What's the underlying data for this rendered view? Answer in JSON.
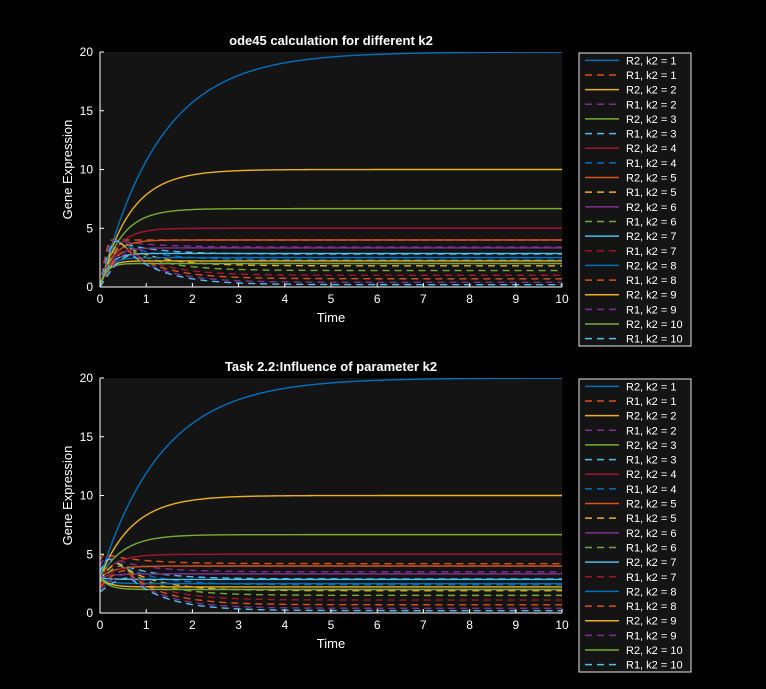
{
  "chart_data": [
    {
      "type": "line",
      "title": "ode45 calculation for different k2",
      "xlabel": "Time",
      "ylabel": "Gene Expression",
      "xlim": [
        0,
        10
      ],
      "ylim": [
        0,
        20
      ],
      "xticks": [
        0,
        1,
        2,
        3,
        4,
        5,
        6,
        7,
        8,
        9,
        10
      ],
      "yticks": [
        0,
        5,
        10,
        15,
        20
      ],
      "grid": false,
      "legend_position": "outside-right",
      "r1_curves": [
        {
          "start": 0,
          "peak_t": 0.25,
          "peak": 4.0,
          "tau": 0.8,
          "final": 4.0
        },
        {
          "start": 0,
          "peak_t": 0.3,
          "peak": 4.0,
          "tau": 0.8,
          "final": 3.4
        },
        {
          "start": 0,
          "peak_t": 0.35,
          "peak": 3.9,
          "tau": 0.8,
          "final": 2.8
        },
        {
          "start": 0,
          "peak_t": 0.4,
          "peak": 3.8,
          "tau": 0.8,
          "final": 2.3
        },
        {
          "start": 0,
          "peak_t": 0.45,
          "peak": 3.7,
          "tau": 0.8,
          "final": 1.8
        },
        {
          "start": 0,
          "peak_t": 0.5,
          "peak": 3.5,
          "tau": 0.8,
          "final": 1.4
        },
        {
          "start": 0,
          "peak_t": 0.55,
          "peak": 3.3,
          "tau": 0.8,
          "final": 1.0
        },
        {
          "start": 0,
          "peak_t": 0.6,
          "peak": 3.1,
          "tau": 0.8,
          "final": 0.7
        },
        {
          "start": 0,
          "peak_t": 0.65,
          "peak": 2.9,
          "tau": 0.8,
          "final": 0.4
        },
        {
          "start": 0,
          "peak_t": 0.7,
          "peak": 2.7,
          "tau": 0.8,
          "final": 0.2
        }
      ],
      "series": [
        {
          "name": "R2, k2 = 1",
          "color": "#0072BD",
          "dash": "solid",
          "kind": "R2",
          "start": 0,
          "final": 20,
          "tau": 1.3
        },
        {
          "name": "R1, k2 = 1",
          "color": "#D95319",
          "dash": "dashed",
          "kind": "R1",
          "curve": 0
        },
        {
          "name": "R2, k2 = 2",
          "color": "#EDB120",
          "dash": "solid",
          "kind": "R2",
          "start": 0,
          "final": 10,
          "tau": 0.65
        },
        {
          "name": "R1, k2 = 2",
          "color": "#7E2F8E",
          "dash": "dashed",
          "kind": "R1",
          "curve": 1
        },
        {
          "name": "R2, k2 = 3",
          "color": "#77AC30",
          "dash": "solid",
          "kind": "R2",
          "start": 0,
          "final": 6.67,
          "tau": 0.45
        },
        {
          "name": "R1, k2 = 3",
          "color": "#4DBEEE",
          "dash": "dashed",
          "kind": "R1",
          "curve": 2
        },
        {
          "name": "R2, k2 = 4",
          "color": "#A2142F",
          "dash": "solid",
          "kind": "R2",
          "start": 0,
          "final": 5.0,
          "tau": 0.33
        },
        {
          "name": "R1, k2 = 4",
          "color": "#0072BD",
          "dash": "dashed",
          "kind": "R1",
          "curve": 3
        },
        {
          "name": "R2, k2 = 5",
          "color": "#D95319",
          "dash": "solid",
          "kind": "R2",
          "start": 0,
          "final": 4.0,
          "tau": 0.27
        },
        {
          "name": "R1, k2 = 5",
          "color": "#EDB120",
          "dash": "dashed",
          "kind": "R1",
          "curve": 4
        },
        {
          "name": "R2, k2 = 6",
          "color": "#7E2F8E",
          "dash": "solid",
          "kind": "R2",
          "start": 0,
          "final": 3.33,
          "tau": 0.23
        },
        {
          "name": "R1, k2 = 6",
          "color": "#77AC30",
          "dash": "dashed",
          "kind": "R1",
          "curve": 5
        },
        {
          "name": "R2, k2 = 7",
          "color": "#4DBEEE",
          "dash": "solid",
          "kind": "R2",
          "start": 0,
          "final": 2.86,
          "tau": 0.2
        },
        {
          "name": "R1, k2 = 7",
          "color": "#A2142F",
          "dash": "dashed",
          "kind": "R1",
          "curve": 6
        },
        {
          "name": "R2, k2 = 8",
          "color": "#0072BD",
          "dash": "solid",
          "kind": "R2",
          "start": 0,
          "final": 2.5,
          "tau": 0.18
        },
        {
          "name": "R1, k2 = 8",
          "color": "#D95319",
          "dash": "dashed",
          "kind": "R1",
          "curve": 7
        },
        {
          "name": "R2, k2 = 9",
          "color": "#EDB120",
          "dash": "solid",
          "kind": "R2",
          "start": 0,
          "final": 2.22,
          "tau": 0.16
        },
        {
          "name": "R1, k2 = 9",
          "color": "#7E2F8E",
          "dash": "dashed",
          "kind": "R1",
          "curve": 8
        },
        {
          "name": "R2, k2 = 10",
          "color": "#77AC30",
          "dash": "solid",
          "kind": "R2",
          "start": 0,
          "final": 2.0,
          "tau": 0.14
        },
        {
          "name": "R1, k2 = 10",
          "color": "#4DBEEE",
          "dash": "dashed",
          "kind": "R1",
          "curve": 9
        }
      ]
    },
    {
      "type": "line",
      "title": "Task 2.2:Influence of parameter k2",
      "xlabel": "Time",
      "ylabel": "Gene Expression",
      "xlim": [
        0,
        10
      ],
      "ylim": [
        0,
        20
      ],
      "xticks": [
        0,
        1,
        2,
        3,
        4,
        5,
        6,
        7,
        8,
        9,
        10
      ],
      "yticks": [
        0,
        5,
        10,
        15,
        20
      ],
      "grid": false,
      "legend_position": "outside-right",
      "r1_curves": [
        {
          "start": 4.5,
          "peak_t": 0.1,
          "peak": 5.0,
          "tau": 0.8,
          "final": 4.2
        },
        {
          "start": 4.0,
          "peak_t": 0.15,
          "peak": 4.8,
          "tau": 0.8,
          "final": 3.5
        },
        {
          "start": 3.5,
          "peak_t": 0.2,
          "peak": 4.6,
          "tau": 0.8,
          "final": 2.9
        },
        {
          "start": 3.0,
          "peak_t": 0.3,
          "peak": 4.4,
          "tau": 0.8,
          "final": 2.4
        },
        {
          "start": 2.8,
          "peak_t": 0.4,
          "peak": 4.2,
          "tau": 0.8,
          "final": 1.9
        },
        {
          "start": 2.6,
          "peak_t": 0.45,
          "peak": 4.0,
          "tau": 0.8,
          "final": 1.5
        },
        {
          "start": 2.4,
          "peak_t": 0.5,
          "peak": 3.8,
          "tau": 0.8,
          "final": 1.1
        },
        {
          "start": 2.2,
          "peak_t": 0.55,
          "peak": 3.6,
          "tau": 0.8,
          "final": 0.7
        },
        {
          "start": 2.0,
          "peak_t": 0.6,
          "peak": 3.3,
          "tau": 0.8,
          "final": 0.4
        },
        {
          "start": 1.8,
          "peak_t": 0.65,
          "peak": 3.0,
          "tau": 0.8,
          "final": 0.2
        }
      ],
      "series": [
        {
          "name": "R2, k2 = 1",
          "color": "#0072BD",
          "dash": "solid",
          "kind": "R2",
          "start": 3.0,
          "final": 20,
          "tau": 1.35
        },
        {
          "name": "R1, k2 = 1",
          "color": "#D95319",
          "dash": "dashed",
          "kind": "R1",
          "curve": 0
        },
        {
          "name": "R2, k2 = 2",
          "color": "#EDB120",
          "dash": "solid",
          "kind": "R2",
          "start": 3.0,
          "final": 10,
          "tau": 0.7
        },
        {
          "name": "R1, k2 = 2",
          "color": "#7E2F8E",
          "dash": "dashed",
          "kind": "R1",
          "curve": 1
        },
        {
          "name": "R2, k2 = 3",
          "color": "#77AC30",
          "dash": "solid",
          "kind": "R2",
          "start": 3.0,
          "final": 6.67,
          "tau": 0.5
        },
        {
          "name": "R1, k2 = 3",
          "color": "#4DBEEE",
          "dash": "dashed",
          "kind": "R1",
          "curve": 2
        },
        {
          "name": "R2, k2 = 4",
          "color": "#A2142F",
          "dash": "solid",
          "kind": "R2",
          "start": 3.0,
          "final": 5.0,
          "tau": 0.35
        },
        {
          "name": "R1, k2 = 4",
          "color": "#0072BD",
          "dash": "dashed",
          "kind": "R1",
          "curve": 3
        },
        {
          "name": "R2, k2 = 5",
          "color": "#D95319",
          "dash": "solid",
          "kind": "R2",
          "start": 3.0,
          "final": 4.0,
          "tau": 0.3
        },
        {
          "name": "R1, k2 = 5",
          "color": "#EDB120",
          "dash": "dashed",
          "kind": "R1",
          "curve": 4
        },
        {
          "name": "R2, k2 = 6",
          "color": "#7E2F8E",
          "dash": "solid",
          "kind": "R2",
          "start": 3.0,
          "final": 3.33,
          "tau": 0.25
        },
        {
          "name": "R1, k2 = 6",
          "color": "#77AC30",
          "dash": "dashed",
          "kind": "R1",
          "curve": 5
        },
        {
          "name": "R2, k2 = 7",
          "color": "#4DBEEE",
          "dash": "solid",
          "kind": "R2",
          "start": 3.0,
          "final": 2.86,
          "tau": 0.2
        },
        {
          "name": "R1, k2 = 7",
          "color": "#A2142F",
          "dash": "dashed",
          "kind": "R1",
          "curve": 6
        },
        {
          "name": "R2, k2 = 8",
          "color": "#0072BD",
          "dash": "solid",
          "kind": "R2",
          "start": 3.0,
          "final": 2.5,
          "tau": 0.2
        },
        {
          "name": "R1, k2 = 8",
          "color": "#D95319",
          "dash": "dashed",
          "kind": "R1",
          "curve": 7
        },
        {
          "name": "R2, k2 = 9",
          "color": "#EDB120",
          "dash": "solid",
          "kind": "R2",
          "start": 3.0,
          "final": 2.22,
          "tau": 0.2
        },
        {
          "name": "R1, k2 = 9",
          "color": "#7E2F8E",
          "dash": "dashed",
          "kind": "R1",
          "curve": 8
        },
        {
          "name": "R2, k2 = 10",
          "color": "#77AC30",
          "dash": "solid",
          "kind": "R2",
          "start": 3.0,
          "final": 2.0,
          "tau": 0.2
        },
        {
          "name": "R1, k2 = 10",
          "color": "#4DBEEE",
          "dash": "dashed",
          "kind": "R1",
          "curve": 9
        }
      ]
    }
  ]
}
